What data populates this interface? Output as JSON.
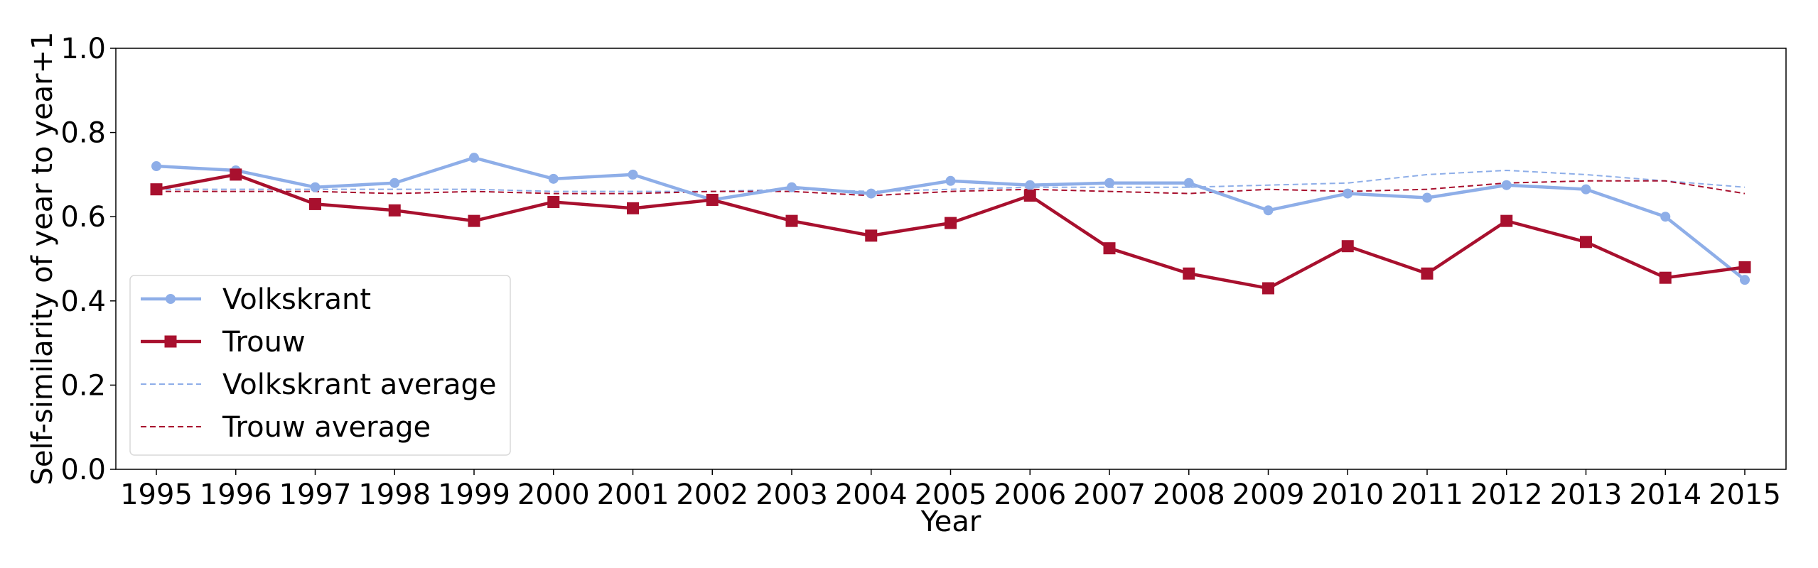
{
  "chart_data": {
    "type": "line",
    "title": "",
    "xlabel": "Year",
    "ylabel": "Self-similarity of year to year+1",
    "ylim": [
      0.0,
      1.0
    ],
    "yticks": [
      "0.0",
      "0.2",
      "0.4",
      "0.6",
      "0.8",
      "1.0"
    ],
    "categories": [
      "1995",
      "1996",
      "1997",
      "1998",
      "1999",
      "2000",
      "2001",
      "2002",
      "2003",
      "2004",
      "2005",
      "2006",
      "2007",
      "2008",
      "2009",
      "2010",
      "2011",
      "2012",
      "2013",
      "2014",
      "2015"
    ],
    "grid": false,
    "legend_position": "lower-left",
    "series": [
      {
        "name": "Volkskrant",
        "color": "#8eaee8",
        "style": "solid",
        "marker": "circle",
        "values": [
          0.72,
          0.71,
          0.67,
          0.68,
          0.74,
          0.69,
          0.7,
          0.64,
          0.67,
          0.655,
          0.685,
          0.675,
          0.68,
          0.68,
          0.615,
          0.655,
          0.645,
          0.675,
          0.665,
          0.6,
          0.45
        ]
      },
      {
        "name": "Trouw",
        "color": "#a8102e",
        "style": "solid",
        "marker": "square",
        "values": [
          0.665,
          0.7,
          0.63,
          0.615,
          0.59,
          0.635,
          0.62,
          0.64,
          0.59,
          0.555,
          0.585,
          0.65,
          0.525,
          0.465,
          0.43,
          0.53,
          0.465,
          0.59,
          0.54,
          0.455,
          0.48
        ]
      },
      {
        "name": "Volkskrant average",
        "color": "#8eaee8",
        "style": "dashed",
        "marker": "none",
        "values": [
          0.665,
          0.665,
          0.665,
          0.665,
          0.665,
          0.66,
          0.66,
          0.66,
          0.665,
          0.66,
          0.665,
          0.67,
          0.67,
          0.67,
          0.675,
          0.68,
          0.7,
          0.71,
          0.7,
          0.685,
          0.67
        ]
      },
      {
        "name": "Trouw average",
        "color": "#a8102e",
        "style": "dashed",
        "marker": "none",
        "values": [
          0.66,
          0.66,
          0.66,
          0.655,
          0.66,
          0.655,
          0.655,
          0.66,
          0.66,
          0.65,
          0.66,
          0.665,
          0.66,
          0.655,
          0.665,
          0.66,
          0.665,
          0.68,
          0.685,
          0.685,
          0.655
        ]
      }
    ]
  }
}
